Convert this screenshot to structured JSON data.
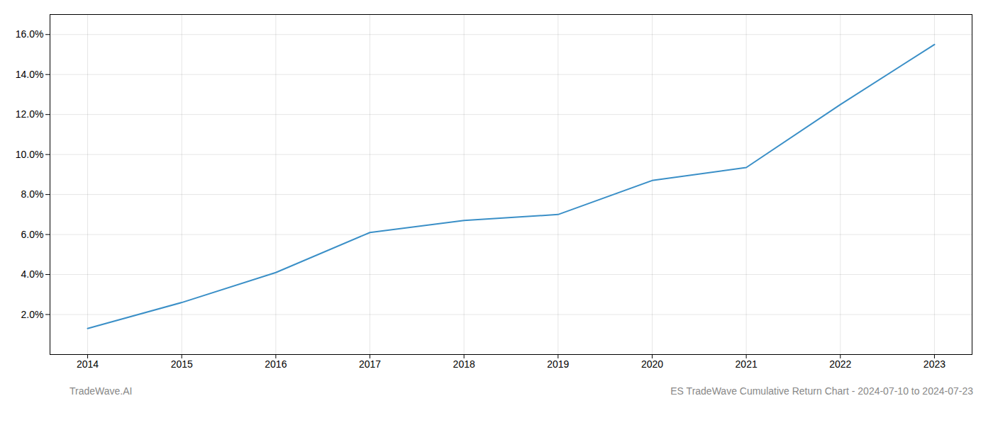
{
  "chart_data": {
    "type": "line",
    "x": [
      2014,
      2015,
      2016,
      2017,
      2018,
      2019,
      2020,
      2021,
      2022,
      2023
    ],
    "values": [
      1.3,
      2.6,
      4.1,
      6.1,
      6.7,
      7.0,
      8.7,
      9.35,
      12.5,
      15.5
    ],
    "color": "#3a8fc7",
    "xlim": [
      2013.6,
      2023.4
    ],
    "xticks": [
      2014,
      2015,
      2016,
      2017,
      2018,
      2019,
      2020,
      2021,
      2022,
      2023
    ],
    "ylim": [
      0.0,
      17.0
    ],
    "yticks": [
      {
        "value": 2.0,
        "label": "2.0%"
      },
      {
        "value": 4.0,
        "label": "4.0%"
      },
      {
        "value": 6.0,
        "label": "6.0%"
      },
      {
        "value": 8.0,
        "label": "8.0%"
      },
      {
        "value": 10.0,
        "label": "10.0%"
      },
      {
        "value": 12.0,
        "label": "12.0%"
      },
      {
        "value": 14.0,
        "label": "14.0%"
      },
      {
        "value": 16.0,
        "label": "16.0%"
      }
    ],
    "grid": true,
    "annotations": [
      "TradeWave.AI",
      "ES TradeWave Cumulative Return Chart - 2024-07-10 to 2024-07-23"
    ]
  }
}
